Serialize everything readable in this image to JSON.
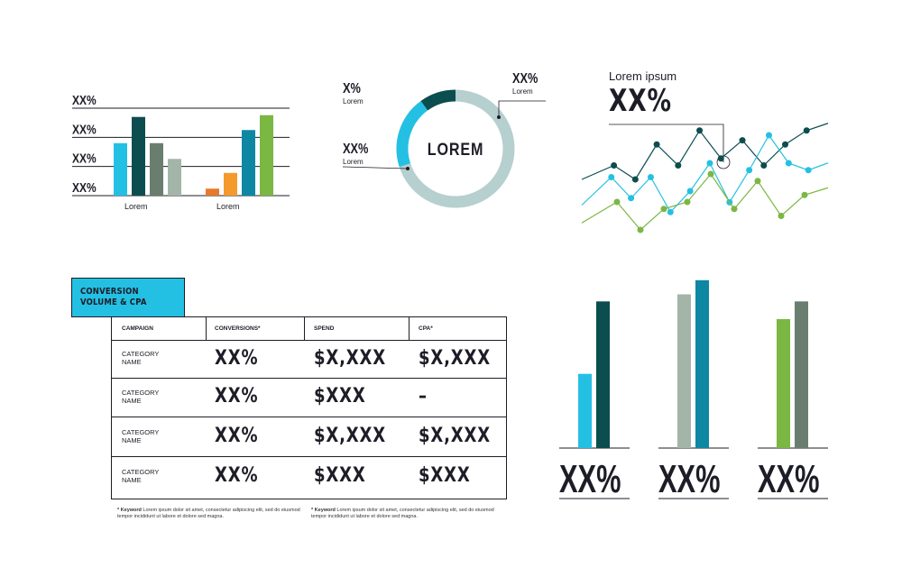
{
  "chart_data": [
    {
      "type": "bar",
      "categories": [
        "Lorem",
        "Lorem"
      ],
      "y_tick_labels": [
        "XX%",
        "XX%",
        "XX%",
        "XX%"
      ],
      "groups": [
        {
          "label": "Lorem",
          "values": [
            60,
            90,
            60,
            42
          ],
          "colors": [
            "#24c0e3",
            "#0c4d4f",
            "#6a7e70",
            "#a3b5a8"
          ]
        },
        {
          "label": "Lorem",
          "values": [
            8,
            26,
            75,
            92
          ],
          "colors": [
            "#e8782b",
            "#f49a2d",
            "#0e87a3",
            "#7ab743"
          ]
        }
      ]
    },
    {
      "type": "pie",
      "center_label": "LOREM",
      "slices": [
        {
          "label": "XX%",
          "sublabel": "Lorem",
          "value": 70,
          "color": "#b6cfcf"
        },
        {
          "label": "XX%",
          "sublabel": "Lorem",
          "value": 20,
          "color": "#24c0e3"
        },
        {
          "label": "X%",
          "sublabel": "Lorem",
          "value": 10,
          "color": "#0c4d4f"
        }
      ]
    },
    {
      "type": "line",
      "title": "Lorem ipsum",
      "headline": "XX%",
      "series": [
        {
          "color": "#0c4d4f",
          "values": [
            20,
            30,
            20,
            45,
            30,
            55,
            35,
            48,
            30,
            45,
            55
          ]
        },
        {
          "color": "#24c0e3",
          "values": [
            10,
            30,
            15,
            30,
            5,
            20,
            40,
            12,
            35,
            60,
            40,
            35
          ]
        },
        {
          "color": "#7ab743",
          "values": [
            5,
            20,
            0,
            15,
            20,
            40,
            15,
            35,
            10,
            25
          ]
        }
      ]
    },
    {
      "type": "bar",
      "groups": [
        {
          "label": "XX%",
          "values": [
            42,
            83
          ],
          "colors": [
            "#24c0e3",
            "#0c4d4f"
          ]
        },
        {
          "label": "XX%",
          "values": [
            87,
            95
          ],
          "colors": [
            "#a3b5a8",
            "#0e87a3"
          ]
        },
        {
          "label": "XX%",
          "values": [
            73,
            83
          ],
          "colors": [
            "#7ab743",
            "#6a7e70"
          ]
        }
      ]
    },
    {
      "type": "table",
      "title": "CONVERSION VOLUME & CPA",
      "columns": [
        "CAMPAIGN",
        "CONVERSIONS*",
        "SPEND",
        "CPA*"
      ],
      "rows": [
        [
          "CATEGORY NAME",
          "XX%",
          "$X,XXX",
          "$X,XXX"
        ],
        [
          "CATEGORY NAME",
          "XX%",
          "$XXX",
          "–"
        ],
        [
          "CATEGORY NAME",
          "XX%",
          "$X,XXX",
          "$X,XXX"
        ],
        [
          "CATEGORY NAME",
          "XX%",
          "$XXX",
          "$XXX"
        ]
      ],
      "footnotes": [
        {
          "keyword": "* Keyword",
          "text": " Lorem ipsum dolor sit amet, consectetur adipiscing elit, sed do eiusmod tempor incididunt ut labore et dolore sed magna."
        },
        {
          "keyword": "* Keyword",
          "text": " Lorem ipsum dolor sit amet, consectetur adipiscing elit, sed do eiusmod tempor incididunt ut labore et dolore sed magna."
        }
      ]
    }
  ],
  "colors": {
    "ink": "#1d1d27",
    "cyan": "#24c0e3",
    "teal_dark": "#0c4d4f",
    "green": "#7ab743"
  }
}
